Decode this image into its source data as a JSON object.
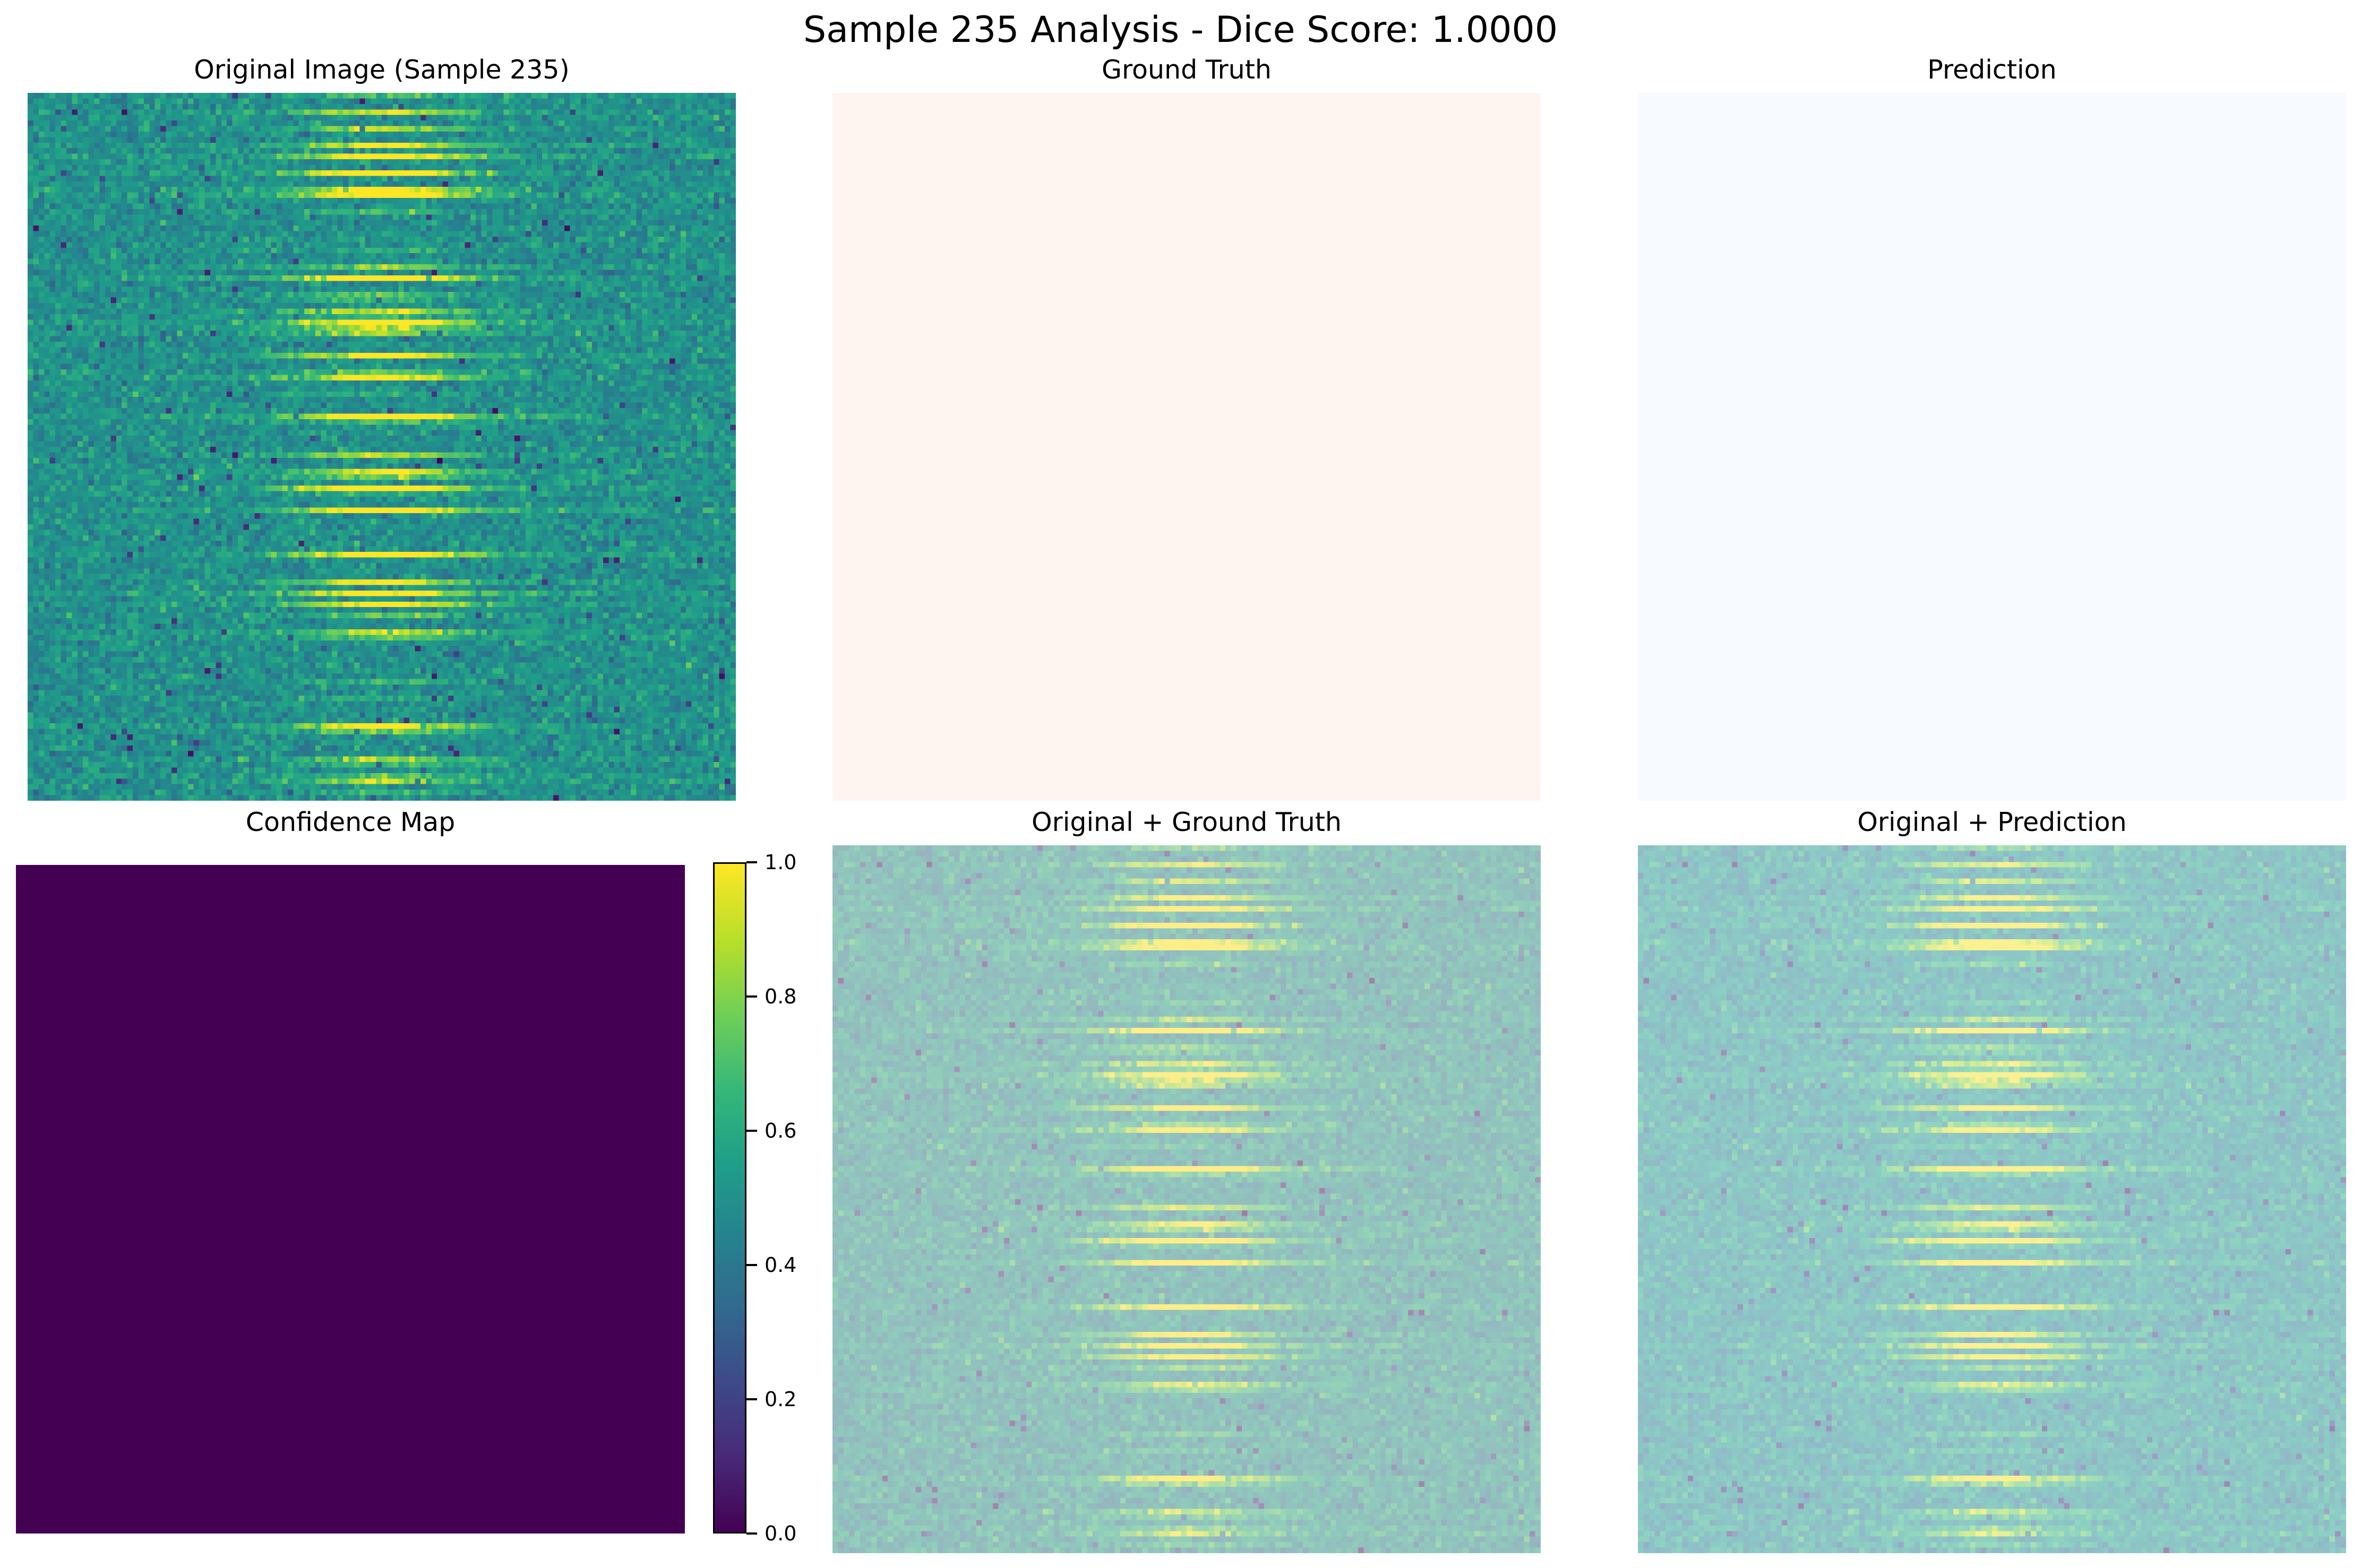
{
  "suptitle": "Sample 235 Analysis - Dice Score: 1.0000",
  "panels": {
    "original": {
      "title": "Original Image (Sample 235)"
    },
    "ground_truth": {
      "title": "Ground Truth",
      "fill_color": "#fff5f0"
    },
    "prediction": {
      "title": "Prediction",
      "fill_color": "#f7fbff"
    },
    "confidence": {
      "title": "Confidence Map",
      "fill_color": "#440154",
      "value": 0.0
    },
    "overlay_gt": {
      "title": "Original + Ground Truth",
      "tint_color": "#fff5f0"
    },
    "overlay_pred": {
      "title": "Original + Prediction",
      "tint_color": "#f7fbff"
    }
  },
  "colorbar": {
    "ticks": [
      "1.0",
      "0.8",
      "0.6",
      "0.4",
      "0.2",
      "0.0"
    ],
    "range": [
      0.0,
      1.0
    ],
    "colormap": "viridis"
  }
}
